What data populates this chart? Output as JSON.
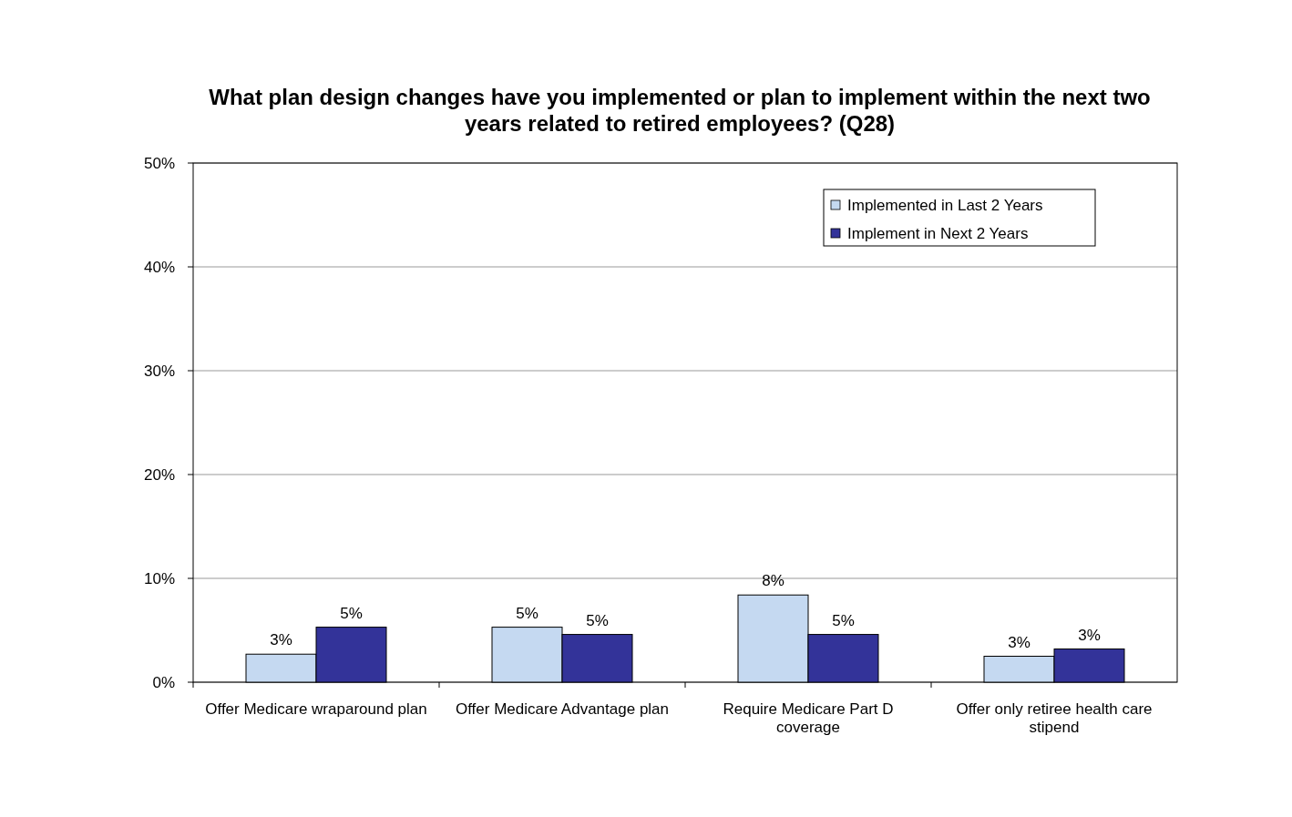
{
  "chart_data": {
    "type": "bar",
    "title": "What plan design changes have you implemented or plan to implement within the next two years related to retired employees? (Q28)",
    "categories": [
      "Offer Medicare wraparound plan",
      "Offer Medicare Advantage plan",
      "Require Medicare Part D coverage",
      "Offer only retiree health care stipend"
    ],
    "series": [
      {
        "name": "Implemented in Last 2 Years",
        "color": "#c5d9f1",
        "values": [
          2.7,
          5.3,
          8.4,
          2.5
        ],
        "value_labels": [
          "3%",
          "5%",
          "8%",
          "3%"
        ]
      },
      {
        "name": "Implement in Next 2 Years",
        "color": "#333399",
        "values": [
          5.3,
          4.6,
          4.6,
          3.2
        ],
        "value_labels": [
          "5%",
          "5%",
          "5%",
          "3%"
        ]
      }
    ],
    "ylim": [
      0,
      50
    ],
    "yticks": [
      {
        "value": 0,
        "label": "0%"
      },
      {
        "value": 10,
        "label": "10%"
      },
      {
        "value": 20,
        "label": "20%"
      },
      {
        "value": 30,
        "label": "30%"
      },
      {
        "value": 40,
        "label": "40%"
      },
      {
        "value": 50,
        "label": "50%"
      }
    ],
    "grid": "y",
    "legend": "top right"
  }
}
